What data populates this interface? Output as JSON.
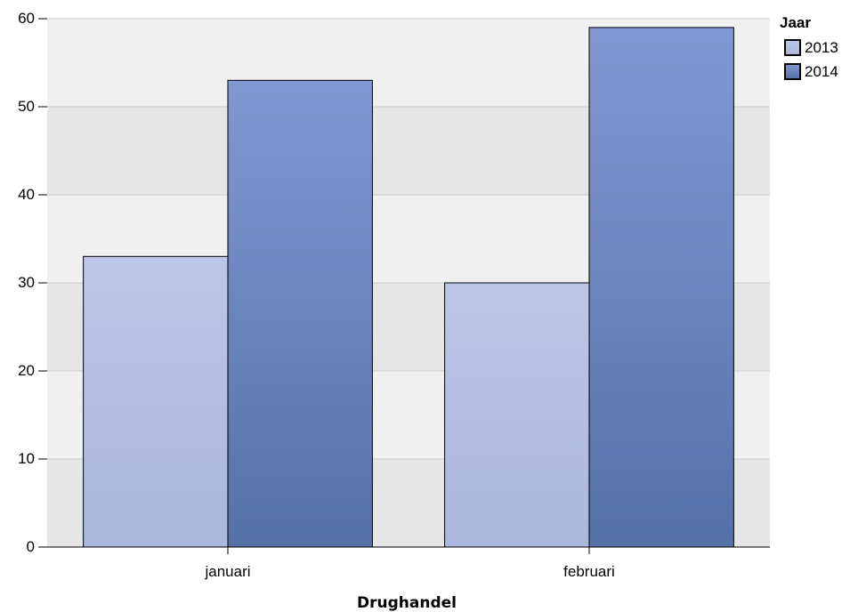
{
  "chart_data": {
    "type": "bar",
    "title": "",
    "xlabel": "Drughandel",
    "ylabel": "",
    "categories": [
      "januari",
      "februari"
    ],
    "series": [
      {
        "name": "2013",
        "values": [
          33,
          30
        ]
      },
      {
        "name": "2014",
        "values": [
          53,
          59
        ]
      }
    ],
    "ylim": [
      0,
      60
    ],
    "yticks": [
      0,
      10,
      20,
      30,
      40,
      50,
      60
    ],
    "grid": true,
    "legend": {
      "title": "Jaar",
      "placement": "top-right"
    },
    "colors": {
      "series_2013_top": "#bcc6e6",
      "series_2013_bottom": "#a9b8dc",
      "series_2014_top": "#8198d2",
      "series_2014_bottom": "#5571a8",
      "band_light": "#f0f0f0",
      "band_dark": "#e6e6e6",
      "grid": "#cccccc",
      "bar_stroke": "#000000"
    }
  }
}
